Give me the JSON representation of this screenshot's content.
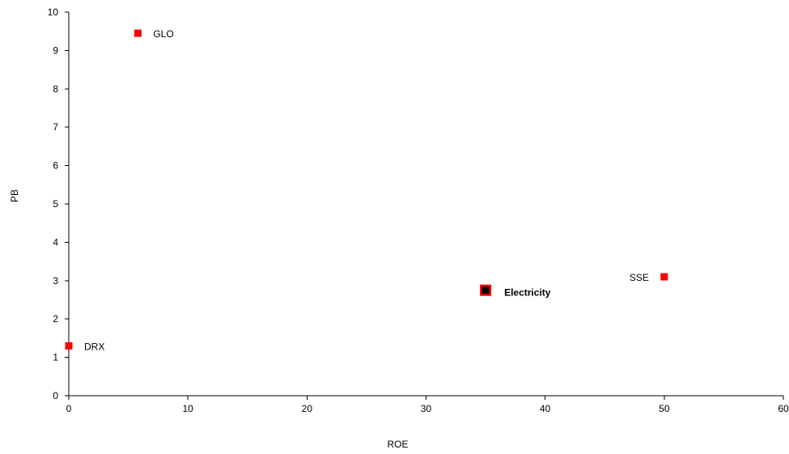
{
  "chart_data": {
    "type": "scatter",
    "title": "",
    "xlabel": "ROE",
    "ylabel": "PB",
    "xlim": [
      0,
      60
    ],
    "ylim": [
      0,
      10
    ],
    "x_ticks": [
      0,
      10,
      20,
      30,
      40,
      50,
      60
    ],
    "y_ticks": [
      0,
      1,
      2,
      3,
      4,
      5,
      6,
      7,
      8,
      9,
      10
    ],
    "grid": false,
    "legend": "none",
    "points": [
      {
        "label": "GLO",
        "x": 5.8,
        "y": 9.45,
        "marker": "square",
        "color": "#ff0000",
        "label_side": "right",
        "bold": false
      },
      {
        "label": "DRX",
        "x": 0.0,
        "y": 1.3,
        "marker": "square",
        "color": "#ff0000",
        "label_side": "right",
        "bold": false
      },
      {
        "label": "SSE",
        "x": 50.0,
        "y": 3.1,
        "marker": "square",
        "color": "#ff0000",
        "label_side": "left",
        "bold": false
      },
      {
        "label": "Electricity",
        "x": 35.0,
        "y": 2.75,
        "marker": "square-outlined",
        "color": "#000000",
        "outline_color": "#ff0000",
        "label_side": "right",
        "bold": true
      }
    ]
  }
}
